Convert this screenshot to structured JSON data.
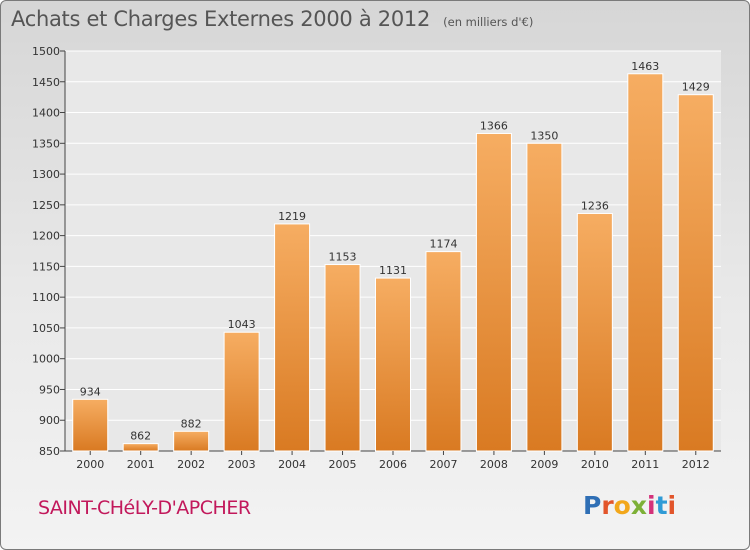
{
  "title": "Achats et Charges Externes 2000 à 2012",
  "subtitle": "(en milliers d'€)",
  "commune": "SAINT-CHéLY-D'APCHER",
  "logo": {
    "letters": [
      "P",
      "r",
      "o",
      "x",
      "i",
      "t",
      "i"
    ],
    "colors": [
      "#2f6fb5",
      "#e2552b",
      "#f2a71b",
      "#7db037",
      "#d4327a",
      "#2f9bd6",
      "#e2552b"
    ]
  },
  "colors": {
    "bar": "#f0923a",
    "bar_light": "#f6ad62",
    "bar_dark": "#d97a22",
    "plot_bg": "#e8e8e8",
    "grid": "#ffffff",
    "title": "#555555",
    "commune": "#c2185b"
  },
  "chart_data": {
    "type": "bar",
    "title": "Achats et Charges Externes 2000 à 2012",
    "subtitle": "(en milliers d'€)",
    "categories": [
      "2000",
      "2001",
      "2002",
      "2003",
      "2004",
      "2005",
      "2006",
      "2007",
      "2008",
      "2009",
      "2010",
      "2011",
      "2012"
    ],
    "values": [
      934,
      862,
      882,
      1043,
      1219,
      1153,
      1131,
      1174,
      1366,
      1350,
      1236,
      1463,
      1429
    ],
    "ylim": [
      850,
      1500
    ],
    "yticks": [
      850,
      900,
      950,
      1000,
      1050,
      1100,
      1150,
      1200,
      1250,
      1300,
      1350,
      1400,
      1450,
      1500
    ],
    "grid": true
  }
}
